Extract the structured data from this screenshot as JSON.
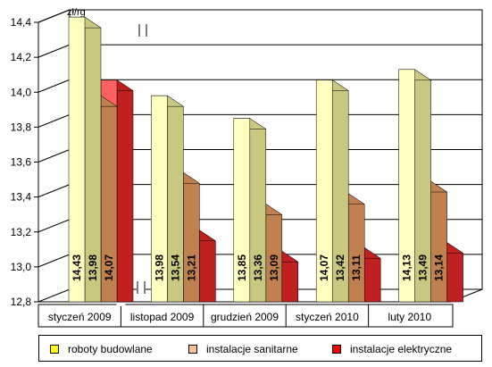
{
  "chart_data": {
    "type": "bar",
    "unit_label": "zł/rg",
    "categories": [
      "styczeń 2009",
      "listopad 2009",
      "grudzień 2009",
      "styczeń 2010",
      "luty 2010"
    ],
    "series": [
      {
        "name": "roboty budowlane",
        "values": [
          14.43,
          13.98,
          13.85,
          14.07,
          14.13
        ],
        "color": "#ffffc0",
        "side_color": "#c8c880",
        "legend_color": "#ffff00"
      },
      {
        "name": "instalacje sanitarne",
        "values": [
          13.98,
          13.54,
          13.36,
          13.42,
          13.49
        ],
        "color": "#ffc090",
        "side_color": "#c08050",
        "legend_color": "#ffc090"
      },
      {
        "name": "instalacje elektryczne",
        "values": [
          14.07,
          13.21,
          13.09,
          13.11,
          13.14
        ],
        "color": "#ff6060",
        "side_color": "#c02020",
        "legend_color": "#ff0000"
      }
    ],
    "y_ticks": [
      "12,8",
      "13,0",
      "13,2",
      "13,4",
      "13,6",
      "13,8",
      "14,0",
      "14,2",
      "14,4"
    ],
    "ylim": [
      12.8,
      14.4
    ],
    "grid": true,
    "legend": "bottom"
  }
}
